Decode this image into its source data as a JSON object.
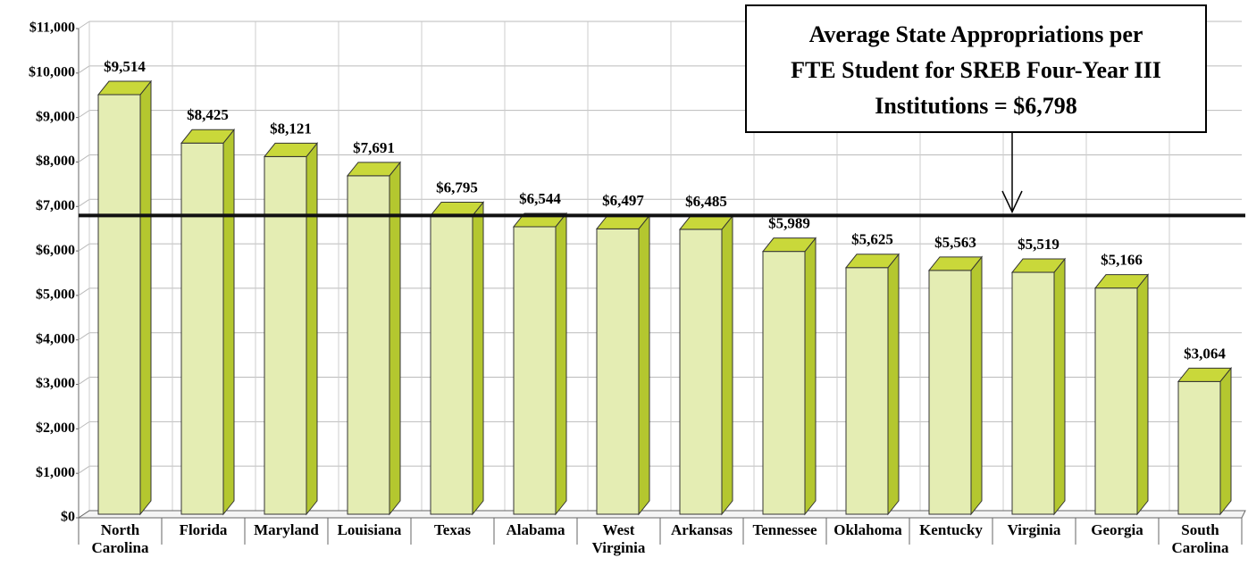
{
  "chart_data": {
    "type": "bar",
    "categories": [
      "North\nCarolina",
      "Florida",
      "Maryland",
      "Louisiana",
      "Texas",
      "Alabama",
      "West\nVirginia",
      "Arkansas",
      "Tennessee",
      "Oklahoma",
      "Kentucky",
      "Virginia",
      "Georgia",
      "South\nCarolina"
    ],
    "values": [
      9514,
      8425,
      8121,
      7691,
      6795,
      6544,
      6497,
      6485,
      5989,
      5625,
      5563,
      5519,
      5166,
      3064
    ],
    "value_labels": [
      "$9,514",
      "$8,425",
      "$8,121",
      "$7,691",
      "$6,795",
      "$6,544",
      "$6,497",
      "$6,485",
      "$5,989",
      "$5,625",
      "$5,563",
      "$5,519",
      "$5,166",
      "$3,064"
    ],
    "color": "#e4edb3",
    "ylim": [
      0,
      11000
    ],
    "yticks": [
      {
        "value": 0,
        "label": "$0"
      },
      {
        "value": 1000,
        "label": "$1,000"
      },
      {
        "value": 2000,
        "label": "$2,000"
      },
      {
        "value": 3000,
        "label": "$3,000"
      },
      {
        "value": 4000,
        "label": "$4,000"
      },
      {
        "value": 5000,
        "label": "$5,000"
      },
      {
        "value": 6000,
        "label": "$6,000"
      },
      {
        "value": 7000,
        "label": "$7,000"
      },
      {
        "value": 8000,
        "label": "$8,000"
      },
      {
        "value": 9000,
        "label": "$9,000"
      },
      {
        "value": 10000,
        "label": "$10,000"
      },
      {
        "value": 11000,
        "label": "$11,000"
      }
    ],
    "grid": true,
    "reference_line": {
      "value": 6798
    },
    "annotation": "Average State Appropriations per\nFTE Student for SREB Four-Year III\nInstitutions = $6,798"
  }
}
